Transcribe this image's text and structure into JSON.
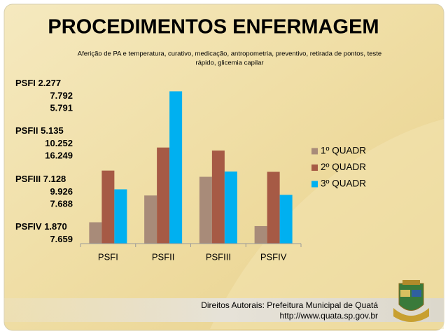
{
  "chart_data": {
    "type": "bar",
    "title": "PROCEDIMENTOS ENFERMAGEM",
    "subtitle": [
      "Aferição de PA e temperatura, curativo, medicação, antropometria, preventivo, retirada de pontos, teste",
      "rápido, glicemia capilar"
    ],
    "categories": [
      "PSFI",
      "PSFII",
      "PSFIII",
      "PSFIV"
    ],
    "series": [
      {
        "name": "1º QUADR",
        "color": "#a88b79",
        "values": [
          2277,
          5135,
          7128,
          1870
        ],
        "value_labels": [
          "2.277",
          "5.135",
          "7.128",
          "1.870"
        ]
      },
      {
        "name": "2º QUADR",
        "color": "#a65a45",
        "values": [
          7792,
          10252,
          9926,
          7659
        ],
        "value_labels": [
          "7.792",
          "10.252",
          "9.926",
          "7.659"
        ]
      },
      {
        "name": "3º QUADR",
        "color": "#00b0f0",
        "values": [
          5791,
          16249,
          7688,
          5200
        ],
        "value_labels": [
          "5.791",
          "16.249",
          "7.688",
          null
        ]
      }
    ],
    "ylim": [
      0,
      18000
    ],
    "legend": "right"
  },
  "footer": {
    "copyright": "Direitos Autorais: Prefeitura Municipal de Quatá",
    "url": "http://www.quata.sp.gov.br"
  }
}
